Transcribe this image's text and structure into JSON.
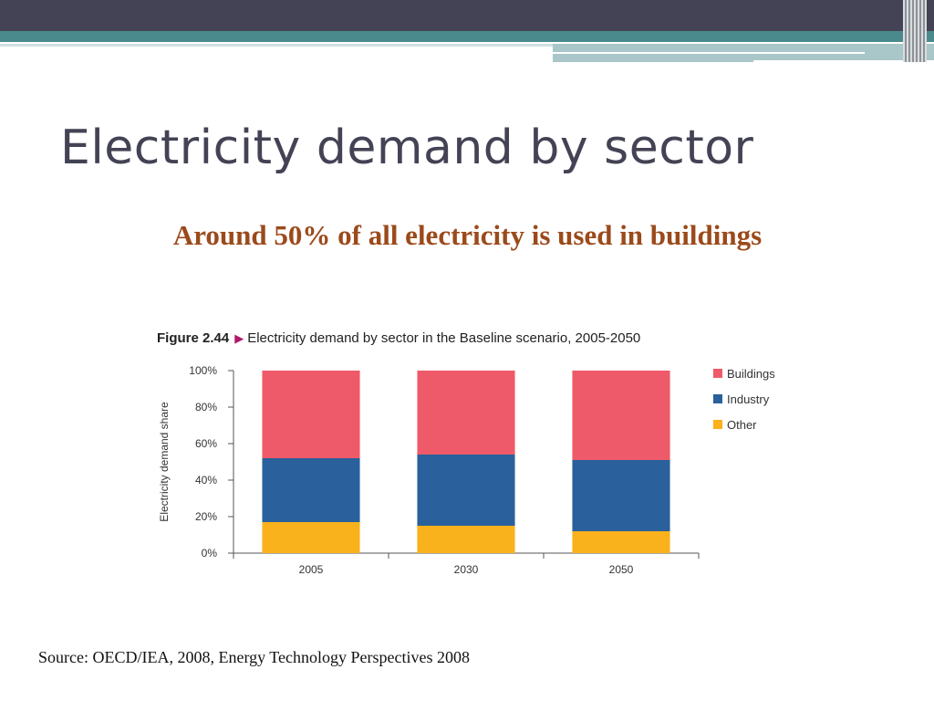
{
  "slide": {
    "title": "Electricity demand by sector",
    "subtitle": "Around 50% of all electricity is used in buildings",
    "source": "Source: OECD/IEA, 2008, Energy Technology Perspectives 2008"
  },
  "figure": {
    "label": "Figure 2.44",
    "caption": "Electricity demand by sector in the Baseline scenario, 2005-2050"
  },
  "colors": {
    "buildings": "#ee5a69",
    "industry": "#2a609b",
    "other": "#f9b11c",
    "header": "#434355",
    "teal": "#4a8a8c",
    "subtitle": "#9b4a1b"
  },
  "chart_data": {
    "type": "bar",
    "stacked": true,
    "title": "Electricity demand by sector in the Baseline scenario, 2005-2050",
    "ylabel": "Electricity demand share",
    "xlabel": "",
    "ylim": [
      0,
      100
    ],
    "yticks": [
      "0%",
      "20%",
      "40%",
      "60%",
      "80%",
      "100%"
    ],
    "categories": [
      "2005",
      "2030",
      "2050"
    ],
    "series": [
      {
        "name": "Other",
        "values": [
          17,
          15,
          12
        ],
        "color": "#f9b11c"
      },
      {
        "name": "Industry",
        "values": [
          35,
          39,
          39
        ],
        "color": "#2a609b"
      },
      {
        "name": "Buildings",
        "values": [
          48,
          46,
          49
        ],
        "color": "#ee5a69"
      }
    ],
    "legend": {
      "position": "right",
      "order": [
        "Buildings",
        "Industry",
        "Other"
      ]
    },
    "grid": false
  }
}
